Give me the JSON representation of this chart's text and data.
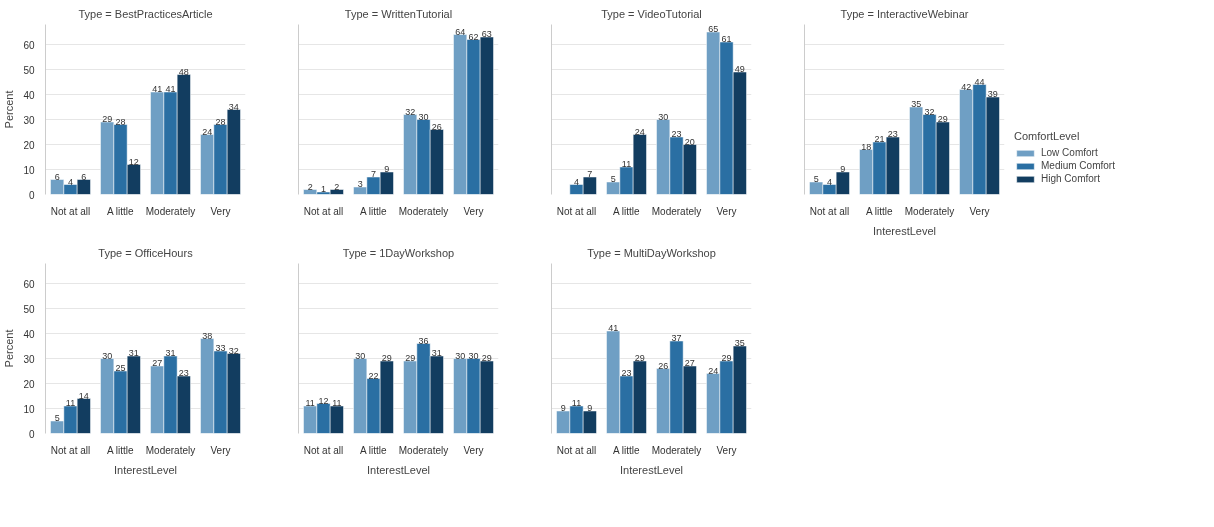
{
  "chart_data": [
    {
      "type": "bar",
      "title": "Type = BestPracticesArticle",
      "ylabel": "Percent",
      "categories": [
        "Not at all",
        "A little",
        "Moderately",
        "Very"
      ],
      "ylim": [
        0,
        68
      ],
      "yticks": [
        0,
        10,
        20,
        30,
        40,
        50,
        60
      ],
      "grid": "y",
      "data_labels": true,
      "series": [
        {
          "color": "#6f9fc4",
          "values": [
            6,
            29,
            41,
            24
          ]
        },
        {
          "color": "#2a6fa3",
          "values": [
            4,
            28,
            41,
            28
          ]
        },
        {
          "color": "#123d60",
          "values": [
            6,
            12,
            48,
            34
          ]
        }
      ]
    },
    {
      "type": "bar",
      "title": "Type = WrittenTutorial",
      "categories": [
        "Not at all",
        "A little",
        "Moderately",
        "Very"
      ],
      "ylim": [
        0,
        68
      ],
      "yticks": [
        0,
        10,
        20,
        30,
        40,
        50,
        60
      ],
      "grid": "y",
      "data_labels": true,
      "tick_labels": "x",
      "series": [
        {
          "color": "#6f9fc4",
          "values": [
            2,
            3,
            32,
            64
          ]
        },
        {
          "color": "#2a6fa3",
          "values": [
            1,
            7,
            30,
            62
          ]
        },
        {
          "color": "#123d60",
          "values": [
            2,
            9,
            26,
            63
          ]
        }
      ]
    },
    {
      "type": "bar",
      "title": "Type = VideoTutorial",
      "categories": [
        "Not at all",
        "A little",
        "Moderately",
        "Very"
      ],
      "ylim": [
        0,
        68
      ],
      "yticks": [
        0,
        10,
        20,
        30,
        40,
        50,
        60
      ],
      "grid": "y",
      "data_labels": true,
      "tick_labels": "x",
      "series": [
        {
          "color": "#6f9fc4",
          "values": [
            null,
            5,
            30,
            65
          ]
        },
        {
          "color": "#2a6fa3",
          "values": [
            4,
            11,
            23,
            61
          ]
        },
        {
          "color": "#123d60",
          "values": [
            7,
            24,
            20,
            49
          ]
        }
      ]
    },
    {
      "type": "bar",
      "title": "Type = InteractiveWebinar",
      "xlabel": "InterestLevel",
      "categories": [
        "Not at all",
        "A little",
        "Moderately",
        "Very"
      ],
      "ylim": [
        0,
        68
      ],
      "yticks": [
        0,
        10,
        20,
        30,
        40,
        50,
        60
      ],
      "grid": "y",
      "data_labels": true,
      "tick_labels": "x",
      "legend": "right",
      "legend_title": "ComfortLevel",
      "series": [
        {
          "name": "Low Comfort",
          "color": "#6f9fc4",
          "values": [
            5,
            18,
            35,
            42
          ]
        },
        {
          "name": "Medium Comfort",
          "color": "#2a6fa3",
          "values": [
            4,
            21,
            32,
            44
          ]
        },
        {
          "name": "High Comfort",
          "color": "#123d60",
          "values": [
            9,
            23,
            29,
            39
          ]
        }
      ]
    },
    {
      "type": "bar",
      "title": "Type = OfficeHours",
      "xlabel": "InterestLevel",
      "ylabel": "Percent",
      "categories": [
        "Not at all",
        "A little",
        "Moderately",
        "Very"
      ],
      "ylim": [
        0,
        68
      ],
      "yticks": [
        0,
        10,
        20,
        30,
        40,
        50,
        60
      ],
      "grid": "y",
      "data_labels": true,
      "series": [
        {
          "color": "#6f9fc4",
          "values": [
            5,
            30,
            27,
            38
          ]
        },
        {
          "color": "#2a6fa3",
          "values": [
            11,
            25,
            31,
            33
          ]
        },
        {
          "color": "#123d60",
          "values": [
            14,
            31,
            23,
            32
          ]
        }
      ]
    },
    {
      "type": "bar",
      "title": "Type = 1DayWorkshop",
      "xlabel": "InterestLevel",
      "categories": [
        "Not at all",
        "A little",
        "Moderately",
        "Very"
      ],
      "ylim": [
        0,
        68
      ],
      "yticks": [
        0,
        10,
        20,
        30,
        40,
        50,
        60
      ],
      "grid": "y",
      "data_labels": true,
      "tick_labels": "x",
      "series": [
        {
          "color": "#6f9fc4",
          "values": [
            11,
            30,
            29,
            30
          ]
        },
        {
          "color": "#2a6fa3",
          "values": [
            12,
            22,
            36,
            30
          ]
        },
        {
          "color": "#123d60",
          "values": [
            11,
            29,
            31,
            29
          ]
        }
      ]
    },
    {
      "type": "bar",
      "title": "Type = MultiDayWorkshop",
      "xlabel": "InterestLevel",
      "categories": [
        "Not at all",
        "A little",
        "Moderately",
        "Very"
      ],
      "ylim": [
        0,
        68
      ],
      "yticks": [
        0,
        10,
        20,
        30,
        40,
        50,
        60
      ],
      "grid": "y",
      "data_labels": true,
      "tick_labels": "x",
      "series": [
        {
          "color": "#6f9fc4",
          "values": [
            9,
            41,
            26,
            24
          ]
        },
        {
          "color": "#2a6fa3",
          "values": [
            11,
            23,
            37,
            29
          ]
        },
        {
          "color": "#123d60",
          "values": [
            9,
            29,
            27,
            35
          ]
        }
      ]
    }
  ]
}
